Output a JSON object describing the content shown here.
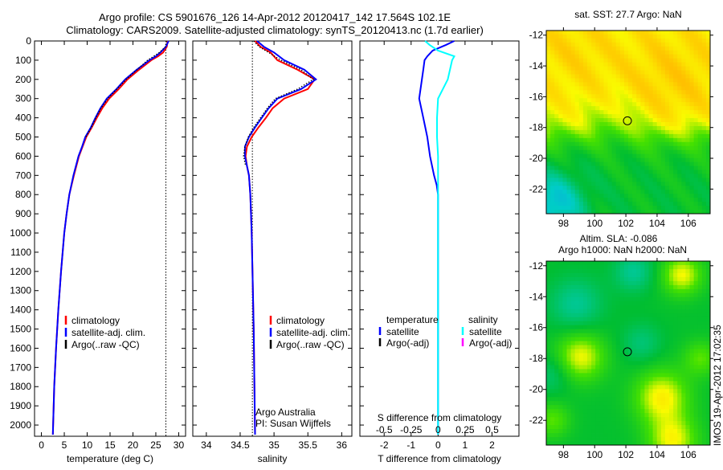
{
  "figure": {
    "title_line1": "Argo profile: CS 5901676_126 14-Apr-2012 20120417_142 17.564S 102.1E",
    "title_line2": "Climatology: CARS2009. Satellite-adjusted climatology: synTS_20120413.nc (1.7d earlier)",
    "footer_stamp": "IMOS 19-Apr-2012 17:02:35",
    "credit_line1": "Argo Australia",
    "credit_line2": "PI: Susan Wijffels"
  },
  "colors": {
    "climatology": "#ff0000",
    "satellite": "#0000ff",
    "argo": "#000000",
    "salinity_satellite": "#00ffff",
    "salinity_argo": "#ff00ff"
  },
  "chart_data": [
    {
      "type": "line",
      "id": "temperature",
      "xlabel": "temperature (deg C)",
      "ylabel": "",
      "xlim": [
        -1.5,
        31.5
      ],
      "ylim": [
        2050,
        0
      ],
      "xticks": [
        0,
        5,
        10,
        15,
        20,
        25,
        30
      ],
      "yticks": [
        0,
        100,
        200,
        300,
        400,
        500,
        600,
        700,
        800,
        900,
        1000,
        1100,
        1200,
        1300,
        1400,
        1500,
        1600,
        1700,
        1800,
        1900,
        2000
      ],
      "surface_reference": 27.2,
      "depth": [
        0,
        30,
        60,
        80,
        100,
        150,
        200,
        250,
        300,
        350,
        400,
        450,
        500,
        550,
        600,
        700,
        800,
        900,
        1000,
        1200,
        1400,
        1600,
        1800,
        2050
      ],
      "series": [
        {
          "name": "climatology",
          "values": [
            27.6,
            27.4,
            26.6,
            25.5,
            24.0,
            21.3,
            18.8,
            16.9,
            14.8,
            13.3,
            12.1,
            11.0,
            9.8,
            9.0,
            8.2,
            7.1,
            6.1,
            5.5,
            5.0,
            4.3,
            3.7,
            3.2,
            2.8,
            2.5
          ]
        },
        {
          "name": "satellite-adj. clim.",
          "values": [
            27.8,
            27.2,
            26.0,
            25.0,
            23.6,
            20.8,
            18.3,
            16.4,
            14.3,
            12.9,
            11.8,
            10.8,
            9.6,
            8.9,
            8.1,
            7.0,
            6.1,
            5.5,
            5.0,
            4.3,
            3.7,
            3.2,
            2.8,
            2.5
          ]
        },
        {
          "name": "Argo(..raw -QC)",
          "values": [
            27.3,
            27.1,
            25.8,
            24.5,
            23.2,
            20.9,
            18.5,
            16.5,
            14.5,
            13.0,
            11.9,
            10.9,
            9.7,
            null,
            null,
            null,
            null,
            null,
            null,
            null,
            null,
            null,
            null,
            null
          ]
        }
      ],
      "legend": [
        "climatology",
        "satellite-adj. clim.",
        "Argo(..raw -QC)"
      ],
      "legend_position": "lower-center"
    },
    {
      "type": "line",
      "id": "salinity",
      "xlabel": "salinity",
      "xlim": [
        33.8,
        36.15
      ],
      "ylim": [
        2050,
        0
      ],
      "xticks": [
        34,
        34.5,
        35,
        35.5,
        36
      ],
      "surface_reference": 34.68,
      "depth": [
        0,
        30,
        60,
        100,
        150,
        200,
        250,
        300,
        350,
        400,
        450,
        500,
        550,
        600,
        650,
        700,
        800,
        1000,
        1500,
        2050
      ],
      "series": [
        {
          "name": "climatology",
          "values": [
            34.72,
            34.8,
            34.95,
            35.05,
            35.35,
            35.6,
            35.5,
            35.15,
            34.98,
            34.88,
            34.77,
            34.67,
            34.6,
            34.58,
            34.6,
            34.63,
            34.65,
            34.67,
            34.7,
            34.72
          ]
        },
        {
          "name": "satellite-adj. clim.",
          "values": [
            34.75,
            34.85,
            35.0,
            35.15,
            35.45,
            35.62,
            35.4,
            35.05,
            34.92,
            34.82,
            34.72,
            34.63,
            34.57,
            34.57,
            34.6,
            34.63,
            34.65,
            34.67,
            34.7,
            34.72
          ]
        },
        {
          "name": "Argo(..raw -QC)",
          "values": [
            34.7,
            34.78,
            34.92,
            35.1,
            35.4,
            35.58,
            35.35,
            35.02,
            34.9,
            34.8,
            34.7,
            34.62,
            34.57,
            34.55,
            34.58,
            null,
            null,
            null,
            null,
            null
          ]
        }
      ],
      "legend": [
        "climatology",
        "satellite-adj. clim.",
        "Argo(..raw -QC)"
      ],
      "legend_position": "lower-center"
    },
    {
      "type": "line",
      "id": "difference",
      "xlabel": "T difference from climatology",
      "xlabel_top": "S difference from climatology",
      "xlim": [
        -2.9,
        3.0
      ],
      "xticks": [
        -2,
        -1,
        0,
        1,
        2
      ],
      "s_xticks": [
        "-0.5",
        "-0.25",
        "0",
        "0.25",
        "0.5"
      ],
      "s_ticks_values": [
        -0.5,
        -0.25,
        0,
        0.25,
        0.5
      ],
      "ylim": [
        2050,
        0
      ],
      "depth": [
        0,
        20,
        50,
        80,
        100,
        150,
        200,
        300,
        400,
        500,
        600,
        700,
        750,
        800,
        1000,
        1500,
        2050
      ],
      "series": [
        {
          "name": "temperature satellite",
          "units": "T",
          "values": [
            0.6,
            0.3,
            -0.2,
            -0.4,
            -0.5,
            -0.55,
            -0.6,
            -0.7,
            -0.55,
            -0.4,
            -0.3,
            -0.15,
            -0.05,
            0.0,
            0.0,
            0.0,
            0.0
          ]
        },
        {
          "name": "salinity satellite",
          "units": "S",
          "values": [
            -0.12,
            -0.08,
            0.0,
            0.15,
            0.13,
            0.11,
            0.09,
            0.0,
            -0.01,
            -0.01,
            0.0,
            0.0,
            0.0,
            0.0,
            0.0,
            0.0,
            0.0
          ]
        }
      ],
      "legend": {
        "temperature_heading": "temperature",
        "salinity_heading": "salinity",
        "t_satellite": "satellite",
        "t_argo": "Argo(-adj)",
        "s_satellite": "satellite",
        "s_argo": "Argo(-adj)"
      }
    },
    {
      "type": "heatmap",
      "id": "sst-map",
      "title": "sat. SST: 27.7  Argo: NaN",
      "xlim": [
        96.9,
        107.4
      ],
      "ylim": [
        -23.6,
        -11.7
      ],
      "xticks": [
        98,
        100,
        102,
        104,
        106
      ],
      "yticks": [
        -12,
        -14,
        -16,
        -18,
        -20,
        -22
      ],
      "marker": {
        "lon": 102.1,
        "lat": -17.564
      }
    },
    {
      "type": "heatmap",
      "id": "sla-map",
      "title_line1": "Altim. SLA: -0.086",
      "title_line2": "Argo h1000: NaN h2000: NaN",
      "xlim": [
        96.9,
        107.4
      ],
      "ylim": [
        -23.6,
        -11.7
      ],
      "xticks": [
        98,
        100,
        102,
        104,
        106
      ],
      "yticks": [
        -12,
        -14,
        -16,
        -18,
        -20,
        -22
      ],
      "marker": {
        "lon": 102.1,
        "lat": -17.564
      }
    }
  ]
}
